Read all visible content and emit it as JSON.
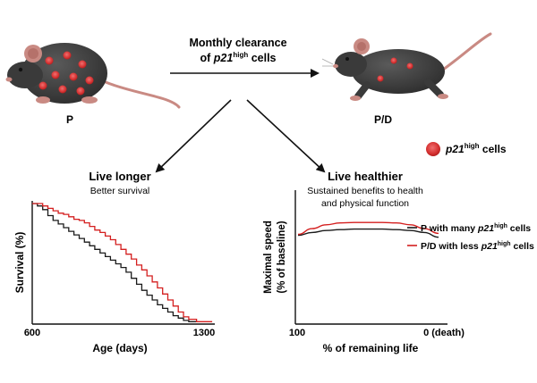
{
  "header": {
    "arrow_label_line1": "Monthly clearance",
    "arrow_label_line2_prefix": "of ",
    "arrow_label_gene": "p21",
    "arrow_label_sup": "high",
    "arrow_label_suffix": " cells"
  },
  "groups": {
    "left_mouse_label": "P",
    "right_mouse_label": "P/D"
  },
  "legend_cells": {
    "gene": "p21",
    "sup": "high",
    "suffix": " cells",
    "color": "#d63232"
  },
  "panels": {
    "left": {
      "title": "Live longer",
      "subtitle": "Better survival"
    },
    "right": {
      "title": "Live healthier",
      "subtitle_line1": "Sustained benefits to health",
      "subtitle_line2": "and physical function"
    }
  },
  "colors": {
    "P": "#1a1a1a",
    "PD": "#d41f1f",
    "mouse_body": "#3d3d3d",
    "mouse_tail": "#c98a83",
    "mouse_ear": "#c98a83"
  },
  "chart_data": [
    {
      "type": "line",
      "title": "",
      "xlabel": "Age (days)",
      "ylabel": "Survival (%)",
      "xlim": [
        600,
        1300
      ],
      "ylim": [
        0,
        100
      ],
      "xticks": [
        "600",
        "1300"
      ],
      "series": [
        {
          "key": "P",
          "step": true,
          "x": [
            600,
            620,
            640,
            660,
            680,
            700,
            720,
            740,
            760,
            780,
            800,
            820,
            840,
            860,
            880,
            900,
            920,
            940,
            960,
            980,
            1000,
            1020,
            1040,
            1060,
            1080,
            1100,
            1120,
            1140,
            1160,
            1180,
            1200,
            1230
          ],
          "y": [
            100,
            98,
            95,
            90,
            86,
            83,
            80,
            77,
            74,
            71,
            68,
            65,
            62,
            59,
            56,
            53,
            50,
            47,
            43,
            38,
            33,
            28,
            24,
            20,
            16,
            13,
            10,
            7,
            5,
            3,
            2,
            2
          ]
        },
        {
          "key": "PD",
          "step": true,
          "x": [
            600,
            620,
            640,
            660,
            680,
            700,
            720,
            740,
            760,
            780,
            800,
            820,
            840,
            860,
            880,
            900,
            920,
            940,
            960,
            980,
            1000,
            1020,
            1040,
            1060,
            1080,
            1100,
            1120,
            1140,
            1160,
            1180,
            1200,
            1230,
            1290
          ],
          "y": [
            100,
            100,
            98,
            96,
            94,
            92,
            91,
            89,
            87,
            86,
            84,
            81,
            78,
            76,
            73,
            70,
            66,
            62,
            58,
            54,
            49,
            45,
            40,
            35,
            30,
            25,
            20,
            15,
            10,
            6,
            4,
            2,
            2
          ]
        }
      ]
    },
    {
      "type": "line",
      "title": "",
      "xlabel": "% of remaining life",
      "ylabel_line1": "Maximal speed",
      "ylabel_line2": "(% of baseline)",
      "xlim": [
        100,
        0
      ],
      "ylim": [
        0,
        100
      ],
      "xticks": [
        "100",
        "0 (death)"
      ],
      "series": [
        {
          "key": "P",
          "label_prefix": "P with many ",
          "gene": "p21",
          "sup": "high",
          "label_suffix": " cells",
          "x": [
            100,
            90,
            80,
            70,
            60,
            50,
            40,
            30,
            20,
            10,
            0
          ],
          "y": [
            22,
            25,
            27,
            28,
            28.5,
            28.5,
            28.5,
            28,
            27,
            25,
            20
          ]
        },
        {
          "key": "PD",
          "label_prefix": "P/D with less ",
          "gene": "p21",
          "sup": "high",
          "label_suffix": " cells",
          "x": [
            100,
            90,
            80,
            70,
            60,
            50,
            40,
            30,
            20,
            10,
            0
          ],
          "y": [
            23,
            29,
            33,
            35,
            35.5,
            35.5,
            35.5,
            35,
            33,
            29,
            24
          ]
        }
      ]
    }
  ]
}
